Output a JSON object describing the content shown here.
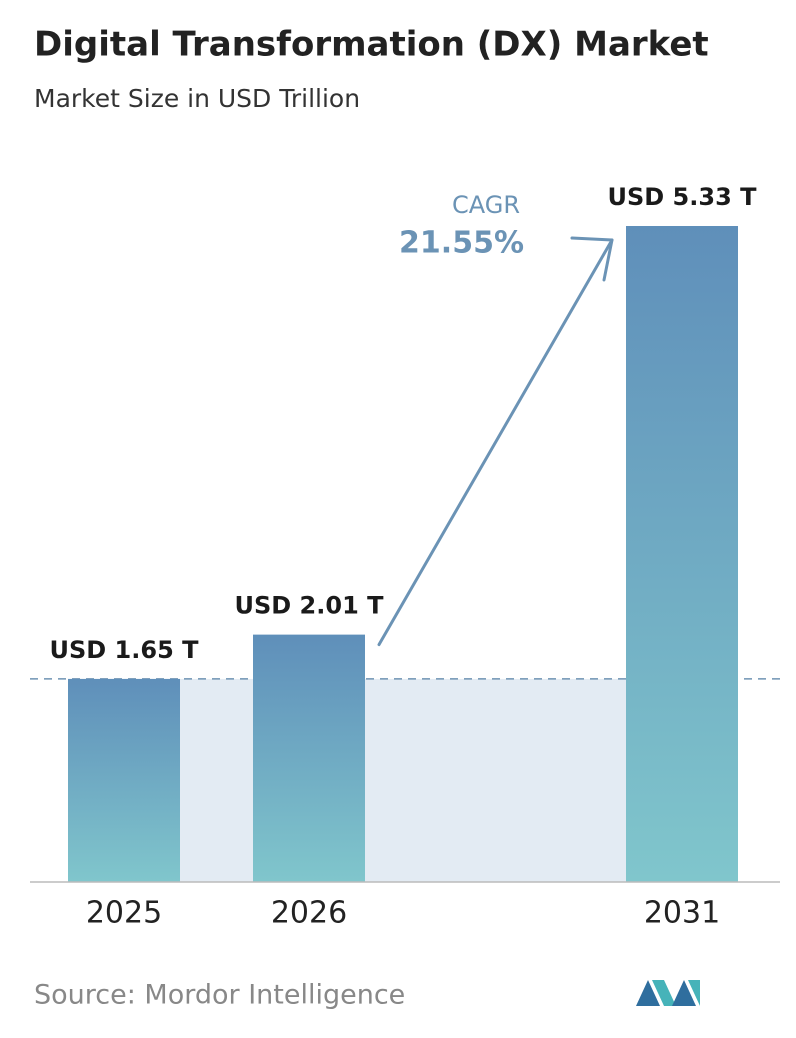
{
  "chart_data": {
    "type": "bar",
    "title": "Digital Transformation (DX) Market",
    "subtitle": "Market Size in USD Trillion",
    "categories": [
      "2025",
      "2026",
      "2031"
    ],
    "values": [
      1.65,
      2.01,
      5.33
    ],
    "value_labels": [
      "USD 1.65 T",
      "USD 2.01 T",
      "USD 5.33 T"
    ],
    "color": [
      "#5f8fba",
      "#80c6cc"
    ],
    "cagr_label": "CAGR",
    "cagr_value": "21.55%",
    "source": "Source:  Mordor Intelligence"
  }
}
